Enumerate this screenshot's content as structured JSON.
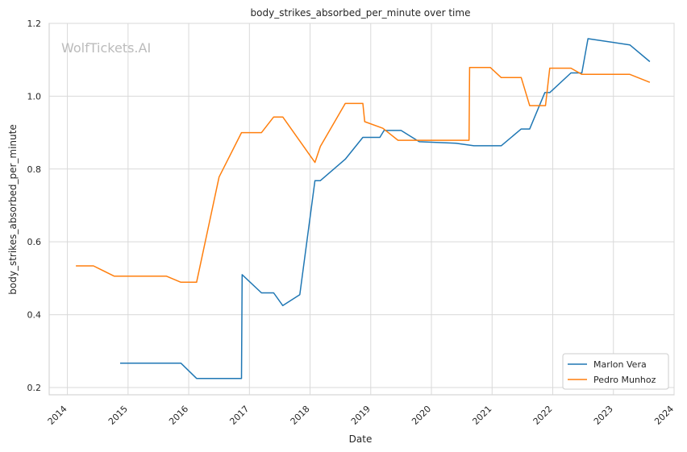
{
  "chart_data": {
    "type": "line",
    "title": "body_strikes_absorbed_per_minute over time",
    "xlabel": "Date",
    "ylabel": "body_strikes_absorbed_per_minute",
    "watermark": "WolfTickets.AI",
    "x_ticks": [
      "2014",
      "2015",
      "2016",
      "2017",
      "2018",
      "2019",
      "2020",
      "2021",
      "2022",
      "2023",
      "2024"
    ],
    "y_ticks": [
      "0.2",
      "0.4",
      "0.6",
      "0.8",
      "1.0",
      "1.2"
    ],
    "xlim": [
      2013.7,
      2024.0
    ],
    "ylim": [
      0.18,
      1.2
    ],
    "grid": true,
    "legend_position": "lower-right",
    "series": [
      {
        "name": "Marlon Vera",
        "color": "#1f77b4",
        "points": [
          [
            2014.87,
            0.267
          ],
          [
            2015.87,
            0.267
          ],
          [
            2016.13,
            0.225
          ],
          [
            2016.87,
            0.225
          ],
          [
            2016.88,
            0.51
          ],
          [
            2017.2,
            0.46
          ],
          [
            2017.4,
            0.46
          ],
          [
            2017.55,
            0.425
          ],
          [
            2017.83,
            0.455
          ],
          [
            2018.08,
            0.768
          ],
          [
            2018.17,
            0.768
          ],
          [
            2018.58,
            0.827
          ],
          [
            2018.87,
            0.887
          ],
          [
            2019.15,
            0.887
          ],
          [
            2019.22,
            0.906
          ],
          [
            2019.5,
            0.906
          ],
          [
            2019.8,
            0.875
          ],
          [
            2020.4,
            0.871
          ],
          [
            2020.7,
            0.864
          ],
          [
            2021.15,
            0.864
          ],
          [
            2021.48,
            0.91
          ],
          [
            2021.62,
            0.91
          ],
          [
            2021.87,
            1.01
          ],
          [
            2021.95,
            1.01
          ],
          [
            2022.3,
            1.064
          ],
          [
            2022.48,
            1.064
          ],
          [
            2022.58,
            1.158
          ],
          [
            2023.27,
            1.141
          ],
          [
            2023.6,
            1.095
          ]
        ]
      },
      {
        "name": "Pedro Munhoz",
        "color": "#ff7f0e",
        "points": [
          [
            2014.14,
            0.534
          ],
          [
            2014.43,
            0.534
          ],
          [
            2014.77,
            0.506
          ],
          [
            2015.63,
            0.506
          ],
          [
            2015.87,
            0.489
          ],
          [
            2016.13,
            0.489
          ],
          [
            2016.5,
            0.778
          ],
          [
            2016.87,
            0.9
          ],
          [
            2017.2,
            0.9
          ],
          [
            2017.4,
            0.943
          ],
          [
            2017.55,
            0.943
          ],
          [
            2018.08,
            0.818
          ],
          [
            2018.17,
            0.862
          ],
          [
            2018.58,
            0.98
          ],
          [
            2018.87,
            0.98
          ],
          [
            2018.9,
            0.93
          ],
          [
            2019.2,
            0.912
          ],
          [
            2019.45,
            0.879
          ],
          [
            2019.8,
            0.879
          ],
          [
            2020.62,
            0.879
          ],
          [
            2020.63,
            1.079
          ],
          [
            2020.97,
            1.079
          ],
          [
            2021.15,
            1.051
          ],
          [
            2021.48,
            1.051
          ],
          [
            2021.62,
            0.974
          ],
          [
            2021.88,
            0.974
          ],
          [
            2021.95,
            1.077
          ],
          [
            2022.3,
            1.077
          ],
          [
            2022.48,
            1.06
          ],
          [
            2023.27,
            1.06
          ],
          [
            2023.6,
            1.038
          ]
        ]
      }
    ]
  }
}
